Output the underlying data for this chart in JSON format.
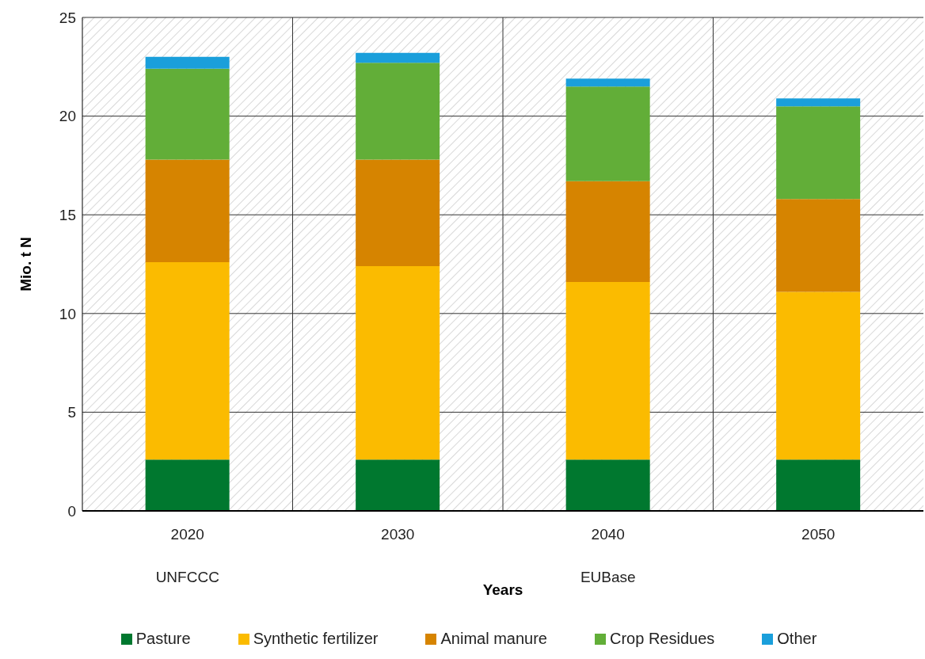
{
  "chart_data": {
    "type": "bar",
    "stacked": true,
    "categories": [
      "2020",
      "2030",
      "2040",
      "2050"
    ],
    "series": [
      {
        "name": "Pasture",
        "color": "#00782f",
        "values": [
          2.6,
          2.6,
          2.6,
          2.6
        ]
      },
      {
        "name": "Synthetic fertilizer",
        "color": "#fbbb00",
        "values": [
          10.0,
          9.8,
          9.0,
          8.5
        ]
      },
      {
        "name": "Animal manure",
        "color": "#d68400",
        "values": [
          5.2,
          5.4,
          5.1,
          4.7
        ]
      },
      {
        "name": "Crop Residues",
        "color": "#62ae38",
        "values": [
          4.6,
          4.9,
          4.8,
          4.7
        ]
      },
      {
        "name": "Other",
        "color": "#1a9fdb",
        "values": [
          0.6,
          0.5,
          0.4,
          0.4
        ]
      }
    ],
    "ylabel": "Mio. t N",
    "xlabel": "Years",
    "ylim": [
      0,
      25
    ],
    "yticks": [
      0,
      5,
      10,
      15,
      20,
      25
    ],
    "grid": true,
    "legend": "bottom",
    "annotations": [
      "UNFCCC",
      "EUBase"
    ]
  }
}
